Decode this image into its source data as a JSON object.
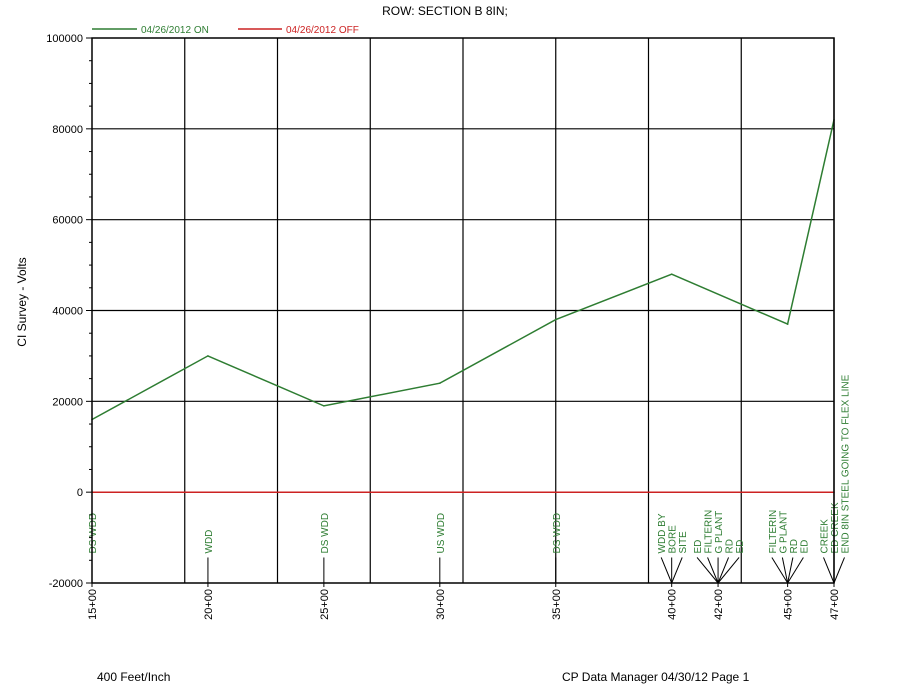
{
  "chart_data": {
    "type": "line",
    "title": "ROW: SECTION B 8IN;",
    "ylabel": "CI Survey - Volts",
    "xlabel": "",
    "ylim": [
      -20000,
      100000
    ],
    "xlim": [
      1500,
      4700
    ],
    "y_ticks": [
      {
        "value": -20000,
        "label": "-20000"
      },
      {
        "value": 0,
        "label": "0"
      },
      {
        "value": 20000,
        "label": "20000"
      },
      {
        "value": 40000,
        "label": "40000"
      },
      {
        "value": 60000,
        "label": "60000"
      },
      {
        "value": 80000,
        "label": "80000"
      },
      {
        "value": 100000,
        "label": "100000"
      }
    ],
    "x_ticks": [
      {
        "value": 1500,
        "label": "15+00"
      },
      {
        "value": 2000,
        "label": "20+00"
      },
      {
        "value": 2500,
        "label": "25+00"
      },
      {
        "value": 3000,
        "label": "30+00"
      },
      {
        "value": 3500,
        "label": "35+00"
      },
      {
        "value": 4000,
        "label": "40+00"
      },
      {
        "value": 4200,
        "label": "42+00"
      },
      {
        "value": 4500,
        "label": "45+00"
      },
      {
        "value": 4700,
        "label": "47+00"
      }
    ],
    "vertical_grid": [
      1900,
      2300,
      2700,
      3100,
      3500,
      3900,
      4300,
      4700
    ],
    "grid": true,
    "legend_position": "top-left",
    "series": [
      {
        "name": "04/26/2012 ON",
        "color": "#2e7d32",
        "x": [
          1500,
          2000,
          2500,
          3000,
          3500,
          4000,
          4500,
          4700
        ],
        "values": [
          16000,
          30000,
          19000,
          24000,
          38000,
          48000,
          37000,
          82000
        ]
      },
      {
        "name": "04/26/2012 OFF",
        "color": "#cc2222",
        "x": [
          1500,
          4700
        ],
        "values": [
          0,
          0
        ]
      }
    ],
    "annotations": [
      {
        "x": 1500,
        "lines": [
          "DS WDD"
        ]
      },
      {
        "x": 2000,
        "lines": [
          "WDD"
        ]
      },
      {
        "x": 2500,
        "lines": [
          "DS WDD"
        ]
      },
      {
        "x": 3000,
        "lines": [
          "US WDD"
        ]
      },
      {
        "x": 3500,
        "lines": [
          "DS WDD"
        ]
      },
      {
        "x": 4000,
        "lines": [
          "WDD BY",
          "BORE",
          "SITE"
        ]
      },
      {
        "x": 4200,
        "lines": [
          "ED",
          "FILTERIN",
          "G PLANT",
          "RD",
          "ED"
        ]
      },
      {
        "x": 4500,
        "lines": [
          "FILTERIN",
          "G PLANT",
          "RD",
          "ED"
        ]
      },
      {
        "x": 4700,
        "lines": [
          "CREEK",
          "ED CREEK",
          "END 8IN STEEL GOING TO FLEX LINE"
        ]
      }
    ],
    "label_color": "#2e7d32"
  },
  "footer": {
    "scale": "400 Feet/Inch",
    "source": "CP Data Manager 04/30/12 Page 1"
  }
}
